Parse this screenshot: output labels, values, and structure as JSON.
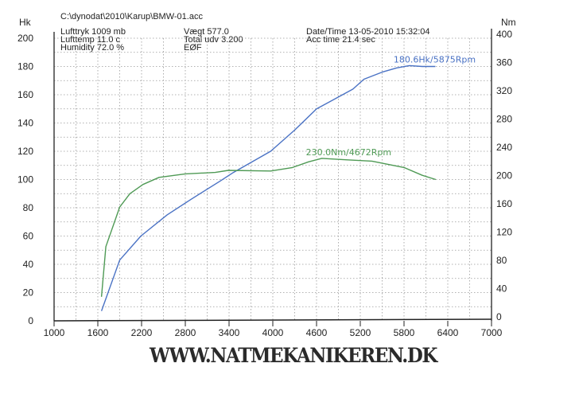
{
  "header": {
    "file_path": "C:\\dynodat\\2010\\Karup\\BMW-01.acc",
    "lufttryk": "Lufttryk  1009 mb",
    "lufttemp": "Lufttemp  11.0 c",
    "humidity": "Humidity  72.0 %",
    "vaegt": "Vægt     577.0",
    "total_udv": "Total udv 3.200",
    "eof": "EØF",
    "datetime": "Date/Time  13-05-2010 15:32:04",
    "acc_time": "Acc time  21.4 sec"
  },
  "footer": {
    "website": "WWW.NATMEKANIKEREN.DK"
  },
  "chart_data": {
    "type": "line",
    "title": "",
    "xlabel": "",
    "ylabel_left": "Hk",
    "ylabel_right": "Nm",
    "xlim": [
      1000,
      7000
    ],
    "ylim_left": [
      0,
      200
    ],
    "ylim_right": [
      0,
      400
    ],
    "x_ticks": [
      "1000",
      "1600",
      "2200",
      "2800",
      "3400",
      "4000",
      "4600",
      "5200",
      "5800",
      "6400",
      "7000"
    ],
    "y_ticks_left": [
      "0",
      "20",
      "40",
      "60",
      "80",
      "100",
      "120",
      "140",
      "160",
      "180",
      "200"
    ],
    "y_ticks_right": [
      "0",
      "40",
      "80",
      "120",
      "160",
      "200",
      "240",
      "280",
      "320",
      "360",
      "400"
    ],
    "grid": true,
    "series": [
      {
        "axis": "left",
        "color": "#4a72c4",
        "annotation": "180.6Hk/5875Rpm",
        "x": [
          1650,
          1900,
          2190,
          2550,
          2880,
          3280,
          3460,
          3970,
          4300,
          4600,
          5100,
          5250,
          5500,
          5700,
          5875,
          6050,
          6230
        ],
        "y": [
          7,
          43,
          60,
          75,
          86,
          99,
          105,
          120,
          135,
          150,
          164,
          171,
          176,
          179,
          180.6,
          180,
          180
        ]
      },
      {
        "axis": "right",
        "color": "#4f9a55",
        "annotation": "230.0Nm/4672Rpm",
        "x": [
          1650,
          1710,
          1900,
          2040,
          2220,
          2440,
          2800,
          3210,
          3390,
          3970,
          4270,
          4490,
          4672,
          5000,
          5360,
          5800,
          6050,
          6235
        ],
        "y": [
          34,
          105,
          161,
          180,
          193,
          203,
          208,
          210,
          213,
          212,
          217,
          225,
          230,
          228,
          226,
          217,
          206,
          200
        ]
      }
    ]
  }
}
